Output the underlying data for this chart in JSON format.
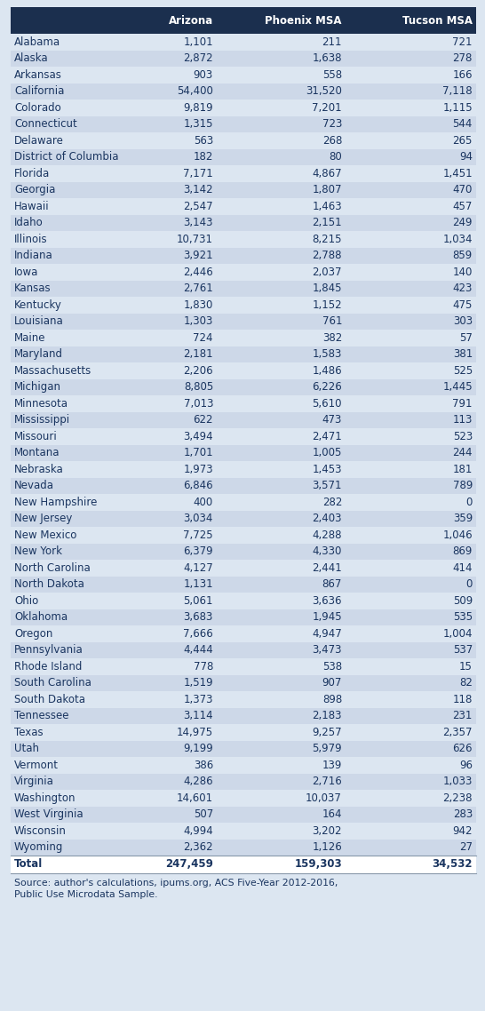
{
  "headers": [
    "Arizona",
    "Phoenix MSA",
    "Tucson MSA"
  ],
  "rows": [
    [
      "Alabama",
      "1,101",
      "211",
      "721"
    ],
    [
      "Alaska",
      "2,872",
      "1,638",
      "278"
    ],
    [
      "Arkansas",
      "903",
      "558",
      "166"
    ],
    [
      "California",
      "54,400",
      "31,520",
      "7,118"
    ],
    [
      "Colorado",
      "9,819",
      "7,201",
      "1,115"
    ],
    [
      "Connecticut",
      "1,315",
      "723",
      "544"
    ],
    [
      "Delaware",
      "563",
      "268",
      "265"
    ],
    [
      "District of Columbia",
      "182",
      "80",
      "94"
    ],
    [
      "Florida",
      "7,171",
      "4,867",
      "1,451"
    ],
    [
      "Georgia",
      "3,142",
      "1,807",
      "470"
    ],
    [
      "Hawaii",
      "2,547",
      "1,463",
      "457"
    ],
    [
      "Idaho",
      "3,143",
      "2,151",
      "249"
    ],
    [
      "Illinois",
      "10,731",
      "8,215",
      "1,034"
    ],
    [
      "Indiana",
      "3,921",
      "2,788",
      "859"
    ],
    [
      "Iowa",
      "2,446",
      "2,037",
      "140"
    ],
    [
      "Kansas",
      "2,761",
      "1,845",
      "423"
    ],
    [
      "Kentucky",
      "1,830",
      "1,152",
      "475"
    ],
    [
      "Louisiana",
      "1,303",
      "761",
      "303"
    ],
    [
      "Maine",
      "724",
      "382",
      "57"
    ],
    [
      "Maryland",
      "2,181",
      "1,583",
      "381"
    ],
    [
      "Massachusetts",
      "2,206",
      "1,486",
      "525"
    ],
    [
      "Michigan",
      "8,805",
      "6,226",
      "1,445"
    ],
    [
      "Minnesota",
      "7,013",
      "5,610",
      "791"
    ],
    [
      "Mississippi",
      "622",
      "473",
      "113"
    ],
    [
      "Missouri",
      "3,494",
      "2,471",
      "523"
    ],
    [
      "Montana",
      "1,701",
      "1,005",
      "244"
    ],
    [
      "Nebraska",
      "1,973",
      "1,453",
      "181"
    ],
    [
      "Nevada",
      "6,846",
      "3,571",
      "789"
    ],
    [
      "New Hampshire",
      "400",
      "282",
      "0"
    ],
    [
      "New Jersey",
      "3,034",
      "2,403",
      "359"
    ],
    [
      "New Mexico",
      "7,725",
      "4,288",
      "1,046"
    ],
    [
      "New York",
      "6,379",
      "4,330",
      "869"
    ],
    [
      "North Carolina",
      "4,127",
      "2,441",
      "414"
    ],
    [
      "North Dakota",
      "1,131",
      "867",
      "0"
    ],
    [
      "Ohio",
      "5,061",
      "3,636",
      "509"
    ],
    [
      "Oklahoma",
      "3,683",
      "1,945",
      "535"
    ],
    [
      "Oregon",
      "7,666",
      "4,947",
      "1,004"
    ],
    [
      "Pennsylvania",
      "4,444",
      "3,473",
      "537"
    ],
    [
      "Rhode Island",
      "778",
      "538",
      "15"
    ],
    [
      "South Carolina",
      "1,519",
      "907",
      "82"
    ],
    [
      "South Dakota",
      "1,373",
      "898",
      "118"
    ],
    [
      "Tennessee",
      "3,114",
      "2,183",
      "231"
    ],
    [
      "Texas",
      "14,975",
      "9,257",
      "2,357"
    ],
    [
      "Utah",
      "9,199",
      "5,979",
      "626"
    ],
    [
      "Vermont",
      "386",
      "139",
      "96"
    ],
    [
      "Virginia",
      "4,286",
      "2,716",
      "1,033"
    ],
    [
      "Washington",
      "14,601",
      "10,037",
      "2,238"
    ],
    [
      "West Virginia",
      "507",
      "164",
      "283"
    ],
    [
      "Wisconsin",
      "4,994",
      "3,202",
      "942"
    ],
    [
      "Wyoming",
      "2,362",
      "1,126",
      "27"
    ]
  ],
  "total_row": [
    "Total",
    "247,459",
    "159,303",
    "34,532"
  ],
  "source_line1": "Source: author's calculations, ipums.org, ACS Five-Year 2012-2016,",
  "source_line2": "Public Use Microdata Sample.",
  "header_bg": "#1b2f4e",
  "header_text": "#ffffff",
  "row_bg_light": "#dce6f1",
  "row_bg_mid": "#cdd8e8",
  "total_row_bg": "#ffffff",
  "sep_line_color": "#8899aa",
  "state_text_color": "#1a3560",
  "value_text_color": "#1a3560",
  "total_text_color": "#1a3560",
  "source_text_color": "#1a3560",
  "fig_bg": "#dce6f1",
  "header_fontsize": 8.5,
  "data_fontsize": 8.5,
  "total_fontsize": 8.5,
  "source_fontsize": 7.8,
  "fig_width": 5.46,
  "fig_height": 11.38,
  "dpi": 100
}
